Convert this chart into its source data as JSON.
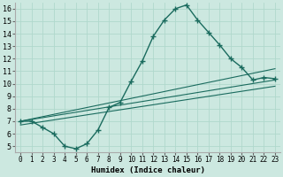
{
  "title": "",
  "xlabel": "Humidex (Indice chaleur)",
  "ylabel": "",
  "bg_color": "#cce8e0",
  "grid_color": "#b0d8cc",
  "line_color": "#1a6b5e",
  "xlim": [
    -0.5,
    23.5
  ],
  "ylim": [
    4.5,
    16.5
  ],
  "xticks": [
    0,
    1,
    2,
    3,
    4,
    5,
    6,
    7,
    8,
    9,
    10,
    11,
    12,
    13,
    14,
    15,
    16,
    17,
    18,
    19,
    20,
    21,
    22,
    23
  ],
  "yticks": [
    5,
    6,
    7,
    8,
    9,
    10,
    11,
    12,
    13,
    14,
    15,
    16
  ],
  "main_series": [
    7.0,
    7.0,
    6.5,
    6.0,
    5.0,
    4.8,
    5.2,
    6.3,
    8.1,
    8.5,
    10.2,
    11.8,
    13.8,
    15.1,
    16.0,
    16.3,
    15.1,
    14.1,
    13.1,
    12.0,
    11.3,
    10.3,
    10.5,
    10.4
  ],
  "line2": [
    [
      0,
      7.0
    ],
    [
      23,
      11.2
    ]
  ],
  "line3": [
    [
      0,
      7.0
    ],
    [
      23,
      10.3
    ]
  ],
  "line4": [
    [
      0,
      6.8
    ],
    [
      7,
      6.5
    ],
    [
      20,
      11.0
    ],
    [
      21,
      10.3
    ],
    [
      22,
      10.5
    ],
    [
      23,
      10.5
    ]
  ]
}
